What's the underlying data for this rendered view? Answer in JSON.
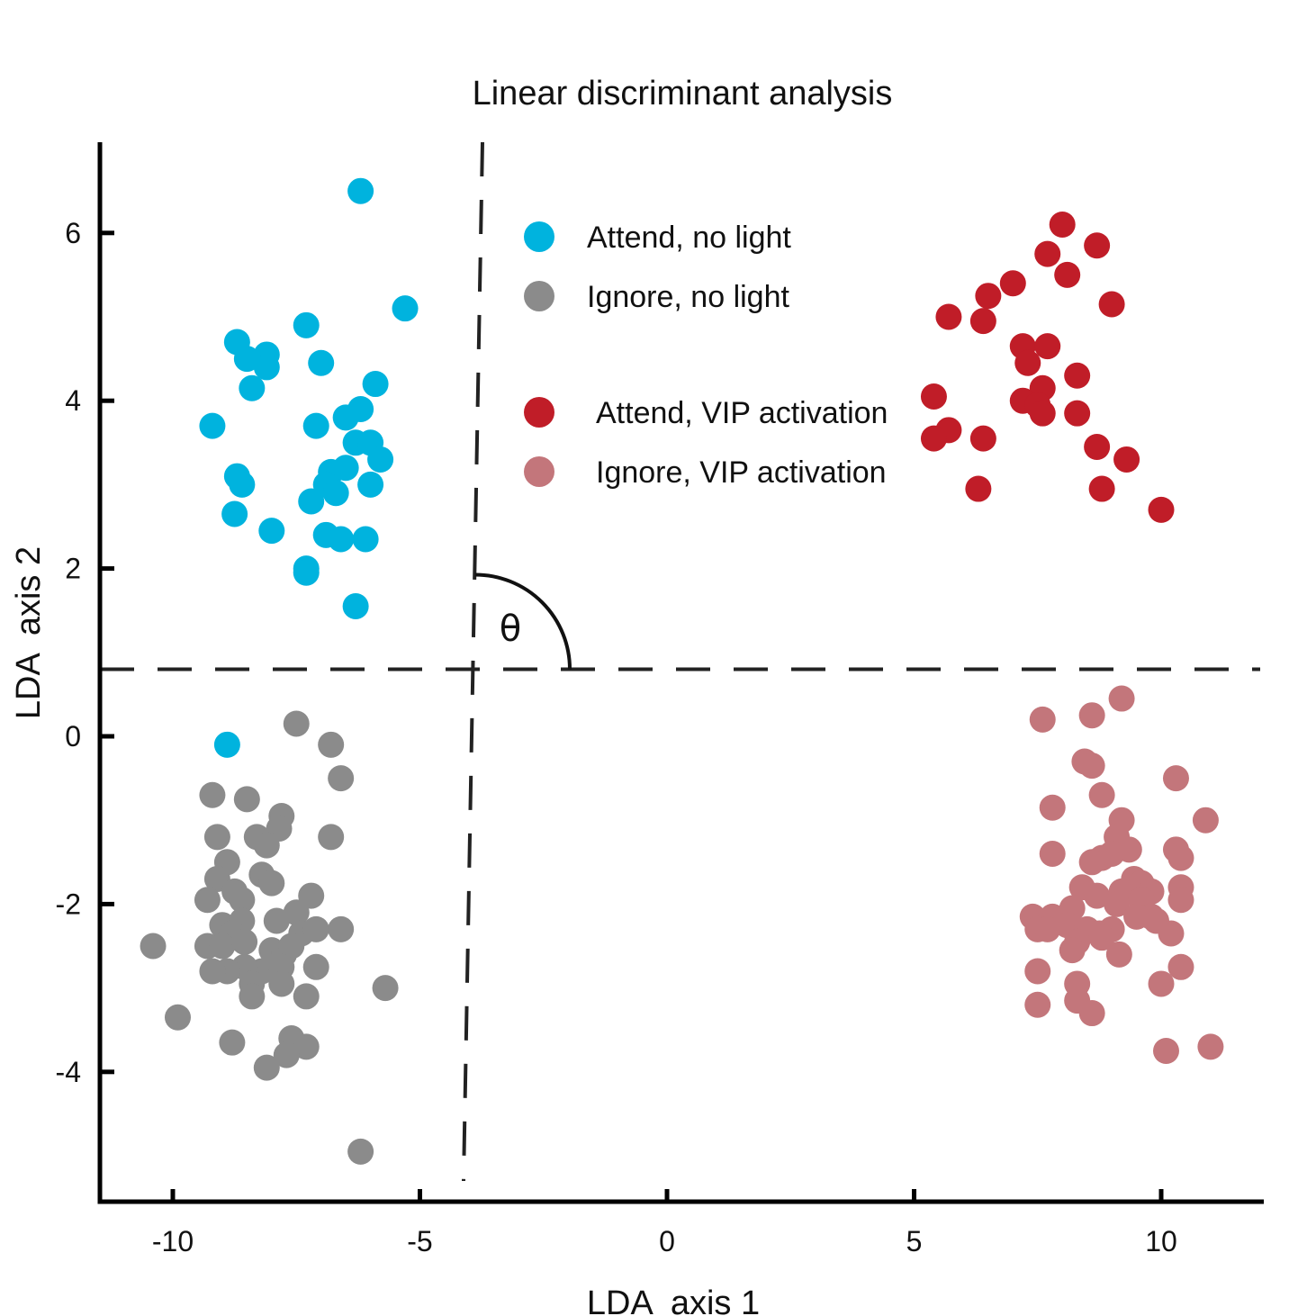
{
  "chart_data": {
    "type": "scatter",
    "title": "Linear discriminant analysis",
    "xlabel": "LDA  axis 1",
    "ylabel": "LDA  axis 2",
    "xlim": [
      -11.5,
      12
    ],
    "ylim": [
      -5.5,
      7
    ],
    "xticks": [
      -10,
      -5,
      0,
      5,
      10
    ],
    "yticks": [
      -4,
      -2,
      0,
      2,
      4,
      6
    ],
    "grid": false,
    "legend_position": "top-center",
    "reference_lines": {
      "vertical_x": -4,
      "horizontal_y": 0.8,
      "annotation": "θ"
    },
    "series": [
      {
        "name": "Attend, no light",
        "color": "#00b3de",
        "points": [
          [
            -6.2,
            6.5
          ],
          [
            -5.3,
            5.1
          ],
          [
            -7.3,
            4.9
          ],
          [
            -8.7,
            4.7
          ],
          [
            -8.5,
            4.5
          ],
          [
            -8.1,
            4.55
          ],
          [
            -8.1,
            4.4
          ],
          [
            -7.0,
            4.45
          ],
          [
            -8.4,
            4.15
          ],
          [
            -5.9,
            4.2
          ],
          [
            -9.2,
            3.7
          ],
          [
            -6.5,
            3.8
          ],
          [
            -6.2,
            3.9
          ],
          [
            -7.1,
            3.7
          ],
          [
            -6.3,
            3.5
          ],
          [
            -6.0,
            3.5
          ],
          [
            -5.8,
            3.3
          ],
          [
            -6.8,
            3.15
          ],
          [
            -6.5,
            3.2
          ],
          [
            -6.9,
            3.0
          ],
          [
            -8.7,
            3.1
          ],
          [
            -8.6,
            3.0
          ],
          [
            -6.0,
            3.0
          ],
          [
            -8.75,
            2.65
          ],
          [
            -7.2,
            2.8
          ],
          [
            -6.7,
            2.9
          ],
          [
            -8.0,
            2.45
          ],
          [
            -6.9,
            2.4
          ],
          [
            -6.6,
            2.35
          ],
          [
            -6.1,
            2.35
          ],
          [
            -7.3,
            2.0
          ],
          [
            -7.3,
            1.95
          ],
          [
            -6.3,
            1.55
          ],
          [
            -8.9,
            -0.1
          ]
        ]
      },
      {
        "name": "Ignore, no light",
        "color": "#8b8b8b",
        "points": [
          [
            -7.5,
            0.15
          ],
          [
            -6.8,
            -0.1
          ],
          [
            -6.6,
            -0.5
          ],
          [
            -9.2,
            -0.7
          ],
          [
            -8.5,
            -0.75
          ],
          [
            -7.8,
            -0.95
          ],
          [
            -7.85,
            -1.1
          ],
          [
            -8.3,
            -1.2
          ],
          [
            -8.1,
            -1.3
          ],
          [
            -9.1,
            -1.2
          ],
          [
            -6.8,
            -1.2
          ],
          [
            -8.9,
            -1.5
          ],
          [
            -9.1,
            -1.7
          ],
          [
            -8.2,
            -1.65
          ],
          [
            -8.0,
            -1.75
          ],
          [
            -8.75,
            -1.85
          ],
          [
            -8.6,
            -1.95
          ],
          [
            -9.3,
            -1.95
          ],
          [
            -7.2,
            -1.9
          ],
          [
            -9.0,
            -2.25
          ],
          [
            -8.6,
            -2.2
          ],
          [
            -7.9,
            -2.2
          ],
          [
            -7.5,
            -2.1
          ],
          [
            -7.4,
            -2.35
          ],
          [
            -7.1,
            -2.3
          ],
          [
            -8.8,
            -2.35
          ],
          [
            -6.6,
            -2.3
          ],
          [
            -10.4,
            -2.5
          ],
          [
            -9.3,
            -2.5
          ],
          [
            -9.0,
            -2.5
          ],
          [
            -8.55,
            -2.45
          ],
          [
            -8.0,
            -2.55
          ],
          [
            -7.75,
            -2.6
          ],
          [
            -7.6,
            -2.5
          ],
          [
            -8.2,
            -2.8
          ],
          [
            -8.55,
            -2.75
          ],
          [
            -8.9,
            -2.8
          ],
          [
            -9.2,
            -2.8
          ],
          [
            -7.1,
            -2.75
          ],
          [
            -7.8,
            -2.75
          ],
          [
            -8.4,
            -2.95
          ],
          [
            -7.8,
            -2.95
          ],
          [
            -8.4,
            -3.1
          ],
          [
            -7.3,
            -3.1
          ],
          [
            -5.7,
            -3.0
          ],
          [
            -9.9,
            -3.35
          ],
          [
            -8.8,
            -3.65
          ],
          [
            -7.6,
            -3.6
          ],
          [
            -7.3,
            -3.7
          ],
          [
            -7.7,
            -3.8
          ],
          [
            -8.1,
            -3.95
          ],
          [
            -6.2,
            -4.95
          ]
        ]
      },
      {
        "name": "Attend, VIP activation",
        "color": "#c01d28",
        "points": [
          [
            8.0,
            6.1
          ],
          [
            8.7,
            5.85
          ],
          [
            7.7,
            5.75
          ],
          [
            8.1,
            5.5
          ],
          [
            7.0,
            5.4
          ],
          [
            6.5,
            5.25
          ],
          [
            9.0,
            5.15
          ],
          [
            5.7,
            5.0
          ],
          [
            6.4,
            4.95
          ],
          [
            7.2,
            4.65
          ],
          [
            7.7,
            4.65
          ],
          [
            7.3,
            4.45
          ],
          [
            8.3,
            4.3
          ],
          [
            5.4,
            4.05
          ],
          [
            7.6,
            4.15
          ],
          [
            7.2,
            4.0
          ],
          [
            7.5,
            3.95
          ],
          [
            7.6,
            3.85
          ],
          [
            8.3,
            3.85
          ],
          [
            5.7,
            3.65
          ],
          [
            5.4,
            3.55
          ],
          [
            6.4,
            3.55
          ],
          [
            8.7,
            3.45
          ],
          [
            9.3,
            3.3
          ],
          [
            6.3,
            2.95
          ],
          [
            8.8,
            2.95
          ],
          [
            10.0,
            2.7
          ]
        ]
      },
      {
        "name": "Ignore, VIP activation",
        "color": "#c3767b",
        "points": [
          [
            9.2,
            0.45
          ],
          [
            8.6,
            0.25
          ],
          [
            7.6,
            0.2
          ],
          [
            8.45,
            -0.3
          ],
          [
            8.6,
            -0.35
          ],
          [
            10.3,
            -0.5
          ],
          [
            8.8,
            -0.7
          ],
          [
            7.8,
            -0.85
          ],
          [
            10.9,
            -1.0
          ],
          [
            9.2,
            -1.0
          ],
          [
            9.1,
            -1.2
          ],
          [
            10.3,
            -1.35
          ],
          [
            7.8,
            -1.4
          ],
          [
            9.35,
            -1.35
          ],
          [
            8.8,
            -1.45
          ],
          [
            9.0,
            -1.4
          ],
          [
            8.6,
            -1.5
          ],
          [
            10.4,
            -1.45
          ],
          [
            9.45,
            -1.7
          ],
          [
            8.4,
            -1.8
          ],
          [
            9.6,
            -1.75
          ],
          [
            9.8,
            -1.85
          ],
          [
            10.4,
            -1.8
          ],
          [
            8.7,
            -1.9
          ],
          [
            9.2,
            -1.85
          ],
          [
            9.6,
            -1.95
          ],
          [
            10.4,
            -1.95
          ],
          [
            8.2,
            -2.05
          ],
          [
            9.1,
            -2.0
          ],
          [
            9.8,
            -2.15
          ],
          [
            7.4,
            -2.15
          ],
          [
            7.8,
            -2.15
          ],
          [
            8.1,
            -2.25
          ],
          [
            9.0,
            -2.3
          ],
          [
            9.5,
            -2.15
          ],
          [
            9.9,
            -2.2
          ],
          [
            10.2,
            -2.35
          ],
          [
            8.5,
            -2.3
          ],
          [
            7.5,
            -2.3
          ],
          [
            7.7,
            -2.3
          ],
          [
            8.75,
            -2.35
          ],
          [
            8.3,
            -2.45
          ],
          [
            8.8,
            -2.4
          ],
          [
            8.2,
            -2.55
          ],
          [
            9.15,
            -2.6
          ],
          [
            7.5,
            -2.8
          ],
          [
            10.4,
            -2.75
          ],
          [
            8.3,
            -2.95
          ],
          [
            10.0,
            -2.95
          ],
          [
            8.3,
            -3.15
          ],
          [
            7.5,
            -3.2
          ],
          [
            8.6,
            -3.3
          ],
          [
            10.1,
            -3.75
          ],
          [
            11.0,
            -3.7
          ]
        ]
      }
    ]
  }
}
